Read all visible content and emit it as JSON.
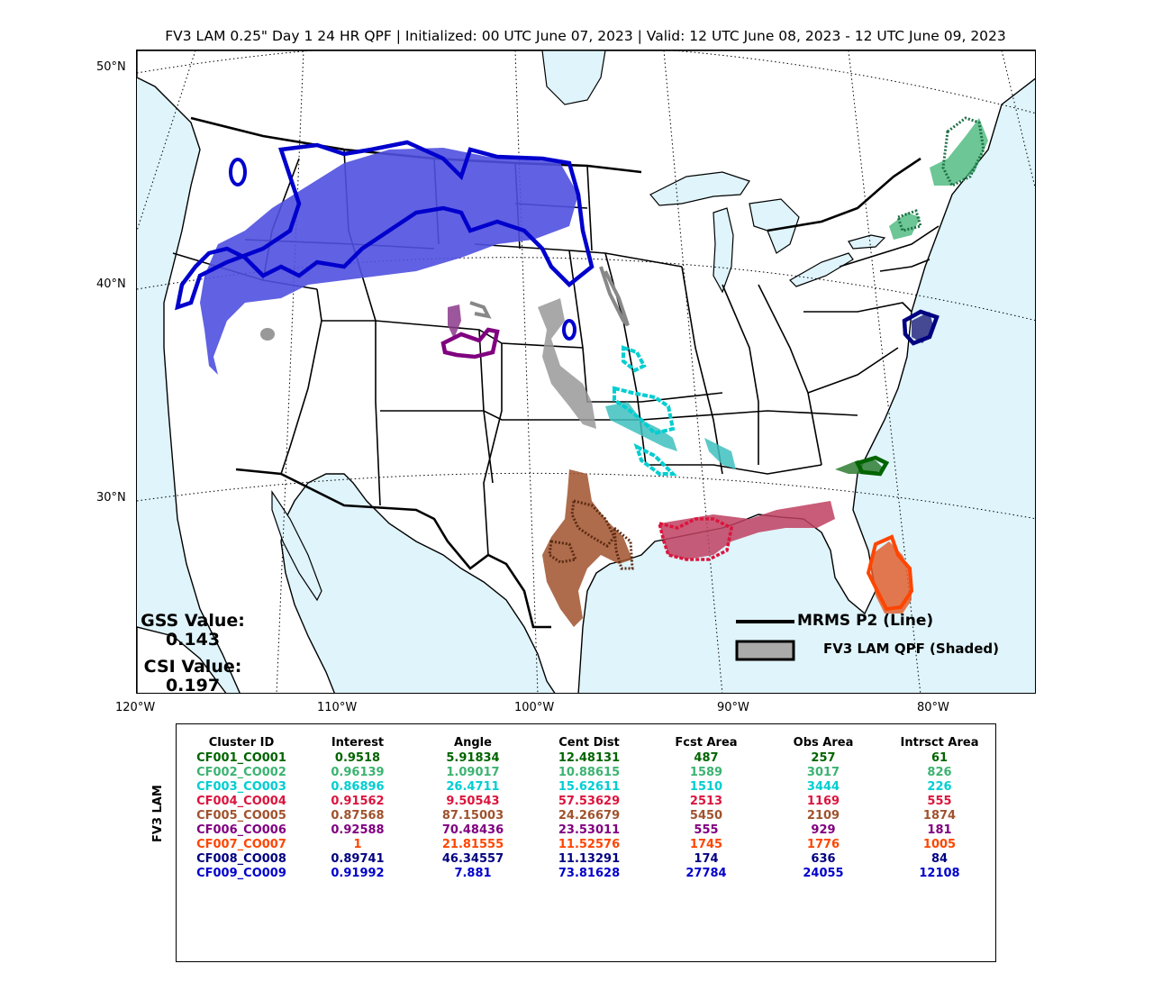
{
  "title": "FV3 LAM 0.25\" Day 1 24 HR QPF | Initialized: 00 UTC June 07, 2023 | Valid: 12 UTC June 08, 2023 - 12 UTC June 09, 2023",
  "map": {
    "lat_labels": [
      "50°N",
      "40°N",
      "30°N"
    ],
    "lon_labels": [
      "120°W",
      "110°W",
      "100°W",
      "90°W",
      "80°W"
    ],
    "water_color": "#dff4fb",
    "land_color": "#ffffff"
  },
  "scores": {
    "gss_label": "GSS Value:",
    "gss_value": "0.143",
    "csi_label": "CSI Value:",
    "csi_value": "0.197"
  },
  "legend": {
    "line_label": "MRMS P2 (Line)",
    "shaded_label": "FV3 LAM QPF (Shaded)"
  },
  "table": {
    "side_label": "FV3 LAM",
    "headers": [
      "Cluster ID",
      "Interest",
      "Angle",
      "Cent Dist",
      "Fcst Area",
      "Obs Area",
      "Intrsct Area"
    ],
    "rows": [
      {
        "id": "CF001_CO001",
        "interest": "0.9518",
        "angle": "5.91834",
        "cent_dist": "12.48131",
        "fcst_area": "487",
        "obs_area": "257",
        "intrsct_area": "61",
        "color": "#006400"
      },
      {
        "id": "CF002_CO002",
        "interest": "0.96139",
        "angle": "1.09017",
        "cent_dist": "10.88615",
        "fcst_area": "1589",
        "obs_area": "3017",
        "intrsct_area": "826",
        "color": "#3cb371"
      },
      {
        "id": "CF003_CO003",
        "interest": "0.86896",
        "angle": "26.4711",
        "cent_dist": "15.62611",
        "fcst_area": "1510",
        "obs_area": "3444",
        "intrsct_area": "226",
        "color": "#00ced1"
      },
      {
        "id": "CF004_CO004",
        "interest": "0.91562",
        "angle": "9.50543",
        "cent_dist": "57.53629",
        "fcst_area": "2513",
        "obs_area": "1169",
        "intrsct_area": "555",
        "color": "#dc143c"
      },
      {
        "id": "CF005_CO005",
        "interest": "0.87568",
        "angle": "87.15003",
        "cent_dist": "24.26679",
        "fcst_area": "5450",
        "obs_area": "2109",
        "intrsct_area": "1874",
        "color": "#a0522d"
      },
      {
        "id": "CF006_CO006",
        "interest": "0.92588",
        "angle": "70.48436",
        "cent_dist": "23.53011",
        "fcst_area": "555",
        "obs_area": "929",
        "intrsct_area": "181",
        "color": "#800080"
      },
      {
        "id": "CF007_CO007",
        "interest": "1",
        "angle": "21.81555",
        "cent_dist": "11.52576",
        "fcst_area": "1745",
        "obs_area": "1776",
        "intrsct_area": "1005",
        "color": "#ff4500"
      },
      {
        "id": "CF008_CO008",
        "interest": "0.89741",
        "angle": "46.34557",
        "cent_dist": "11.13291",
        "fcst_area": "174",
        "obs_area": "636",
        "intrsct_area": "84",
        "color": "#000080"
      },
      {
        "id": "CF009_CO009",
        "interest": "0.91992",
        "angle": "7.881",
        "cent_dist": "73.81628",
        "fcst_area": "27784",
        "obs_area": "24055",
        "intrsct_area": "12108",
        "color": "#0000cd"
      }
    ]
  }
}
